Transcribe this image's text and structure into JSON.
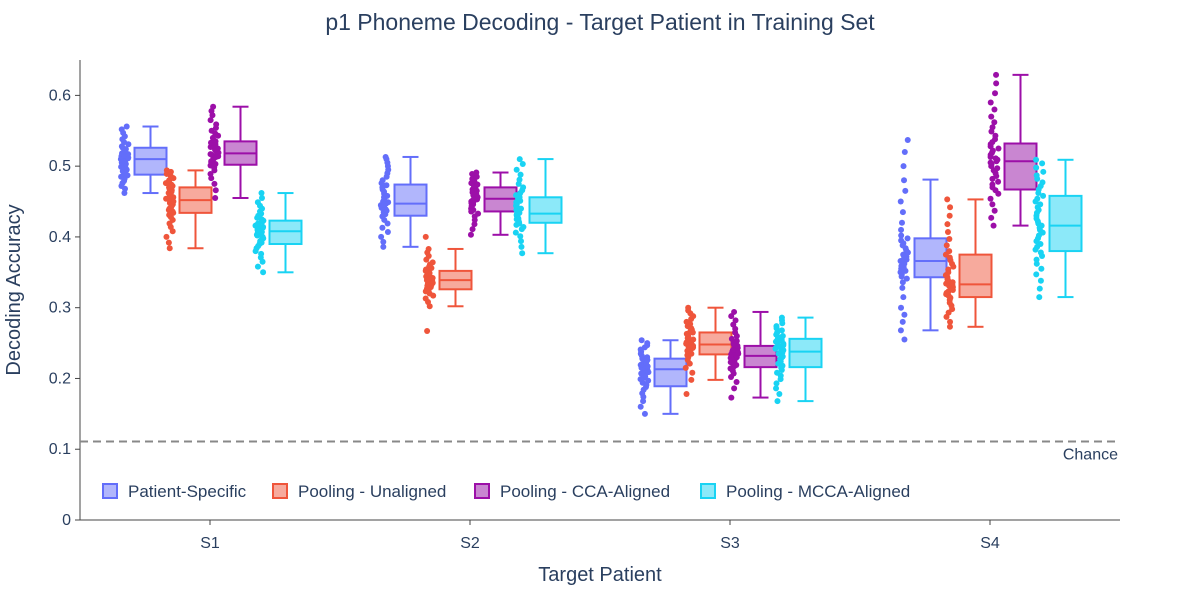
{
  "chart_data": {
    "type": "box",
    "title": "p1 Phoneme Decoding - Target Patient in Training Set",
    "xlabel": "Target Patient",
    "ylabel": "Decoding Accuracy",
    "categories": [
      "S1",
      "S2",
      "S3",
      "S4"
    ],
    "ylim": [
      0,
      0.65
    ],
    "yticks": [
      0,
      0.1,
      0.2,
      0.3,
      0.4,
      0.5,
      0.6
    ],
    "ytick_labels": [
      "0",
      "0.1",
      "0.2",
      "0.3",
      "0.4",
      "0.5",
      "0.6"
    ],
    "grid": false,
    "legend_position": "bottom-left",
    "chance": {
      "value": 0.111,
      "label": "Chance",
      "color": "#888888"
    },
    "series": [
      {
        "name": "Patient-Specific",
        "color": "#636efa",
        "fill": "#b1b6fc",
        "boxes": [
          {
            "min": 0.462,
            "q1": 0.488,
            "median": 0.51,
            "q3": 0.526,
            "max": 0.556
          },
          {
            "min": 0.386,
            "q1": 0.43,
            "median": 0.447,
            "q3": 0.474,
            "max": 0.513
          },
          {
            "min": 0.15,
            "q1": 0.189,
            "median": 0.213,
            "q3": 0.228,
            "max": 0.254
          },
          {
            "min": 0.268,
            "q1": 0.343,
            "median": 0.366,
            "q3": 0.398,
            "max": 0.481
          }
        ],
        "points": [
          [
            0.462,
            0.468,
            0.472,
            0.476,
            0.479,
            0.482,
            0.485,
            0.487,
            0.489,
            0.491,
            0.493,
            0.495,
            0.497,
            0.499,
            0.5,
            0.502,
            0.503,
            0.505,
            0.506,
            0.508,
            0.509,
            0.51,
            0.511,
            0.512,
            0.514,
            0.515,
            0.517,
            0.518,
            0.52,
            0.522,
            0.524,
            0.526,
            0.528,
            0.531,
            0.534,
            0.538,
            0.542,
            0.547,
            0.552,
            0.556
          ],
          [
            0.386,
            0.393,
            0.4,
            0.407,
            0.413,
            0.419,
            0.424,
            0.429,
            0.432,
            0.435,
            0.437,
            0.439,
            0.441,
            0.442,
            0.443,
            0.444,
            0.445,
            0.446,
            0.447,
            0.448,
            0.449,
            0.45,
            0.452,
            0.454,
            0.456,
            0.458,
            0.461,
            0.464,
            0.467,
            0.47,
            0.473,
            0.476,
            0.48,
            0.485,
            0.49,
            0.495,
            0.5,
            0.505,
            0.51,
            0.513
          ],
          [
            0.15,
            0.16,
            0.168,
            0.174,
            0.179,
            0.184,
            0.188,
            0.191,
            0.194,
            0.197,
            0.199,
            0.201,
            0.203,
            0.205,
            0.207,
            0.209,
            0.211,
            0.212,
            0.213,
            0.214,
            0.215,
            0.216,
            0.217,
            0.218,
            0.219,
            0.22,
            0.222,
            0.223,
            0.225,
            0.226,
            0.228,
            0.23,
            0.232,
            0.235,
            0.238,
            0.241,
            0.244,
            0.247,
            0.25,
            0.254
          ],
          [
            0.255,
            0.268,
            0.28,
            0.29,
            0.3,
            0.315,
            0.328,
            0.336,
            0.341,
            0.344,
            0.347,
            0.35,
            0.352,
            0.355,
            0.357,
            0.359,
            0.362,
            0.364,
            0.366,
            0.368,
            0.37,
            0.372,
            0.375,
            0.378,
            0.381,
            0.384,
            0.388,
            0.391,
            0.395,
            0.398,
            0.402,
            0.41,
            0.42,
            0.435,
            0.45,
            0.465,
            0.48,
            0.5,
            0.52,
            0.537
          ]
        ]
      },
      {
        "name": "Pooling - Unaligned",
        "color": "#ef553b",
        "fill": "#f7aa9d",
        "boxes": [
          {
            "min": 0.384,
            "q1": 0.434,
            "median": 0.452,
            "q3": 0.47,
            "max": 0.494
          },
          {
            "min": 0.302,
            "q1": 0.326,
            "median": 0.339,
            "q3": 0.352,
            "max": 0.383
          },
          {
            "min": 0.198,
            "q1": 0.234,
            "median": 0.248,
            "q3": 0.265,
            "max": 0.3
          },
          {
            "min": 0.273,
            "q1": 0.315,
            "median": 0.333,
            "q3": 0.375,
            "max": 0.453
          }
        ],
        "points": [
          [
            0.384,
            0.392,
            0.4,
            0.408,
            0.414,
            0.419,
            0.424,
            0.428,
            0.431,
            0.434,
            0.436,
            0.438,
            0.44,
            0.442,
            0.444,
            0.446,
            0.448,
            0.45,
            0.451,
            0.452,
            0.453,
            0.454,
            0.456,
            0.458,
            0.46,
            0.462,
            0.464,
            0.466,
            0.468,
            0.47,
            0.472,
            0.474,
            0.476,
            0.478,
            0.48,
            0.483,
            0.486,
            0.489,
            0.492,
            0.494
          ],
          [
            0.267,
            0.302,
            0.308,
            0.313,
            0.317,
            0.32,
            0.323,
            0.325,
            0.327,
            0.329,
            0.331,
            0.332,
            0.334,
            0.335,
            0.336,
            0.337,
            0.338,
            0.339,
            0.34,
            0.341,
            0.342,
            0.343,
            0.344,
            0.345,
            0.346,
            0.347,
            0.348,
            0.349,
            0.351,
            0.352,
            0.354,
            0.356,
            0.358,
            0.361,
            0.364,
            0.368,
            0.373,
            0.378,
            0.383,
            0.4
          ],
          [
            0.178,
            0.198,
            0.208,
            0.215,
            0.221,
            0.226,
            0.23,
            0.233,
            0.235,
            0.237,
            0.239,
            0.241,
            0.243,
            0.244,
            0.245,
            0.246,
            0.247,
            0.248,
            0.249,
            0.25,
            0.251,
            0.252,
            0.254,
            0.255,
            0.257,
            0.259,
            0.261,
            0.263,
            0.265,
            0.267,
            0.269,
            0.271,
            0.274,
            0.277,
            0.28,
            0.284,
            0.288,
            0.292,
            0.296,
            0.3
          ],
          [
            0.273,
            0.28,
            0.287,
            0.293,
            0.298,
            0.303,
            0.307,
            0.311,
            0.314,
            0.317,
            0.319,
            0.321,
            0.323,
            0.325,
            0.327,
            0.329,
            0.331,
            0.332,
            0.333,
            0.334,
            0.336,
            0.338,
            0.34,
            0.343,
            0.346,
            0.35,
            0.354,
            0.358,
            0.362,
            0.367,
            0.371,
            0.375,
            0.38,
            0.388,
            0.397,
            0.407,
            0.418,
            0.43,
            0.442,
            0.453
          ]
        ]
      },
      {
        "name": "Pooling - CCA-Aligned",
        "color": "#9c0fa8",
        "fill": "#c986d1",
        "boxes": [
          {
            "min": 0.455,
            "q1": 0.502,
            "median": 0.518,
            "q3": 0.535,
            "max": 0.584
          },
          {
            "min": 0.403,
            "q1": 0.436,
            "median": 0.454,
            "q3": 0.47,
            "max": 0.491
          },
          {
            "min": 0.173,
            "q1": 0.216,
            "median": 0.232,
            "q3": 0.246,
            "max": 0.294
          },
          {
            "min": 0.416,
            "q1": 0.467,
            "median": 0.507,
            "q3": 0.532,
            "max": 0.629
          }
        ],
        "points": [
          [
            0.455,
            0.466,
            0.475,
            0.483,
            0.489,
            0.494,
            0.498,
            0.501,
            0.503,
            0.505,
            0.507,
            0.509,
            0.511,
            0.513,
            0.514,
            0.515,
            0.516,
            0.517,
            0.518,
            0.519,
            0.52,
            0.521,
            0.523,
            0.525,
            0.527,
            0.529,
            0.531,
            0.533,
            0.535,
            0.537,
            0.54,
            0.543,
            0.546,
            0.55,
            0.554,
            0.559,
            0.565,
            0.572,
            0.578,
            0.584
          ],
          [
            0.403,
            0.411,
            0.418,
            0.424,
            0.429,
            0.433,
            0.436,
            0.438,
            0.44,
            0.442,
            0.444,
            0.446,
            0.448,
            0.449,
            0.45,
            0.451,
            0.452,
            0.453,
            0.454,
            0.455,
            0.456,
            0.457,
            0.459,
            0.46,
            0.462,
            0.463,
            0.465,
            0.467,
            0.469,
            0.47,
            0.472,
            0.474,
            0.476,
            0.478,
            0.48,
            0.482,
            0.485,
            0.487,
            0.489,
            0.491
          ],
          [
            0.173,
            0.186,
            0.195,
            0.202,
            0.207,
            0.211,
            0.214,
            0.217,
            0.219,
            0.221,
            0.223,
            0.225,
            0.227,
            0.228,
            0.229,
            0.23,
            0.231,
            0.232,
            0.233,
            0.234,
            0.235,
            0.236,
            0.237,
            0.238,
            0.24,
            0.241,
            0.243,
            0.244,
            0.246,
            0.248,
            0.25,
            0.253,
            0.256,
            0.26,
            0.265,
            0.27,
            0.276,
            0.282,
            0.288,
            0.294
          ],
          [
            0.416,
            0.427,
            0.437,
            0.446,
            0.454,
            0.461,
            0.466,
            0.47,
            0.474,
            0.478,
            0.482,
            0.486,
            0.49,
            0.494,
            0.497,
            0.5,
            0.503,
            0.505,
            0.507,
            0.509,
            0.511,
            0.513,
            0.516,
            0.519,
            0.522,
            0.525,
            0.528,
            0.531,
            0.534,
            0.538,
            0.543,
            0.549,
            0.555,
            0.562,
            0.57,
            0.58,
            0.59,
            0.603,
            0.617,
            0.629
          ]
        ]
      },
      {
        "name": "Pooling - MCCA-Aligned",
        "color": "#19d3f3",
        "fill": "#8ce9f9",
        "boxes": [
          {
            "min": 0.35,
            "q1": 0.39,
            "median": 0.408,
            "q3": 0.423,
            "max": 0.462
          },
          {
            "min": 0.377,
            "q1": 0.42,
            "median": 0.433,
            "q3": 0.456,
            "max": 0.51
          },
          {
            "min": 0.168,
            "q1": 0.216,
            "median": 0.238,
            "q3": 0.256,
            "max": 0.286
          },
          {
            "min": 0.315,
            "q1": 0.38,
            "median": 0.416,
            "q3": 0.458,
            "max": 0.509
          }
        ],
        "points": [
          [
            0.35,
            0.358,
            0.365,
            0.371,
            0.376,
            0.38,
            0.384,
            0.387,
            0.39,
            0.392,
            0.394,
            0.396,
            0.398,
            0.4,
            0.402,
            0.403,
            0.404,
            0.406,
            0.407,
            0.408,
            0.409,
            0.41,
            0.411,
            0.413,
            0.414,
            0.416,
            0.417,
            0.419,
            0.421,
            0.423,
            0.425,
            0.427,
            0.43,
            0.433,
            0.436,
            0.44,
            0.444,
            0.449,
            0.455,
            0.462
          ],
          [
            0.377,
            0.386,
            0.394,
            0.401,
            0.406,
            0.411,
            0.414,
            0.417,
            0.419,
            0.421,
            0.423,
            0.425,
            0.426,
            0.428,
            0.429,
            0.43,
            0.431,
            0.432,
            0.433,
            0.434,
            0.436,
            0.438,
            0.44,
            0.442,
            0.444,
            0.446,
            0.449,
            0.451,
            0.454,
            0.456,
            0.459,
            0.462,
            0.466,
            0.47,
            0.475,
            0.481,
            0.488,
            0.495,
            0.503,
            0.51
          ],
          [
            0.168,
            0.178,
            0.186,
            0.193,
            0.199,
            0.204,
            0.208,
            0.212,
            0.215,
            0.218,
            0.221,
            0.224,
            0.227,
            0.229,
            0.231,
            0.233,
            0.235,
            0.237,
            0.238,
            0.239,
            0.24,
            0.242,
            0.244,
            0.245,
            0.247,
            0.249,
            0.251,
            0.252,
            0.254,
            0.256,
            0.258,
            0.26,
            0.262,
            0.265,
            0.268,
            0.271,
            0.274,
            0.278,
            0.282,
            0.286
          ],
          [
            0.315,
            0.327,
            0.338,
            0.347,
            0.355,
            0.362,
            0.368,
            0.373,
            0.378,
            0.382,
            0.386,
            0.39,
            0.394,
            0.398,
            0.402,
            0.406,
            0.41,
            0.413,
            0.416,
            0.419,
            0.422,
            0.426,
            0.43,
            0.434,
            0.438,
            0.442,
            0.446,
            0.45,
            0.454,
            0.458,
            0.462,
            0.467,
            0.472,
            0.477,
            0.482,
            0.487,
            0.492,
            0.498,
            0.504,
            0.509
          ]
        ]
      }
    ]
  }
}
